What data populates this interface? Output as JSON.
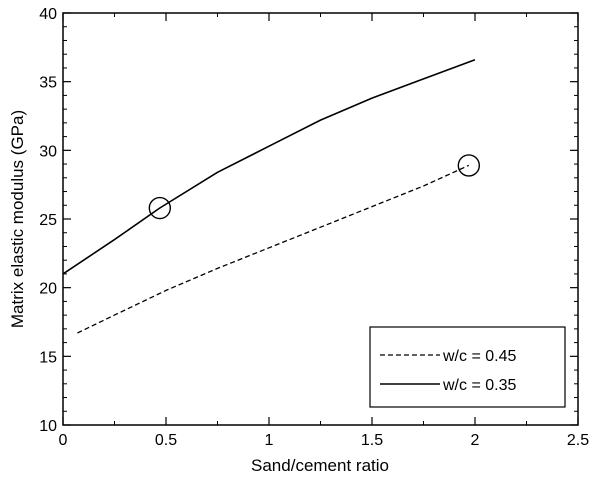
{
  "chart_data": {
    "type": "line",
    "title": "",
    "xlabel": "Sand/cement ratio",
    "ylabel": "Matrix elastic modulus (GPa)",
    "xlim": [
      0,
      2.5
    ],
    "ylim": [
      10,
      40
    ],
    "x_ticks": [
      0,
      0.5,
      1,
      1.5,
      2,
      2.5
    ],
    "x_tick_labels": [
      "0",
      "0.5",
      "1",
      "1.5",
      "2",
      "2.5"
    ],
    "y_ticks": [
      10,
      15,
      20,
      25,
      30,
      35,
      40
    ],
    "y_tick_labels": [
      "10",
      "15",
      "20",
      "25",
      "30",
      "35",
      "40"
    ],
    "grid": false,
    "legend_position": "bottom-right",
    "series": [
      {
        "name": "w/c = 0.45",
        "style": "dashed",
        "x": [
          0.07,
          0.25,
          0.5,
          0.75,
          1.0,
          1.25,
          1.5,
          1.75,
          1.97
        ],
        "y": [
          16.7,
          18.0,
          19.8,
          21.4,
          22.9,
          24.4,
          25.9,
          27.4,
          28.9
        ]
      },
      {
        "name": "w/c = 0.35",
        "style": "solid",
        "x": [
          0,
          0.25,
          0.47,
          0.75,
          1.0,
          1.25,
          1.5,
          1.75,
          2.0
        ],
        "y": [
          21.0,
          23.5,
          25.8,
          28.4,
          30.3,
          32.2,
          33.8,
          35.2,
          36.6
        ]
      }
    ],
    "annotations": [
      {
        "type": "circle",
        "x": 0.47,
        "y": 25.8
      },
      {
        "type": "circle",
        "x": 1.97,
        "y": 28.9
      }
    ]
  }
}
